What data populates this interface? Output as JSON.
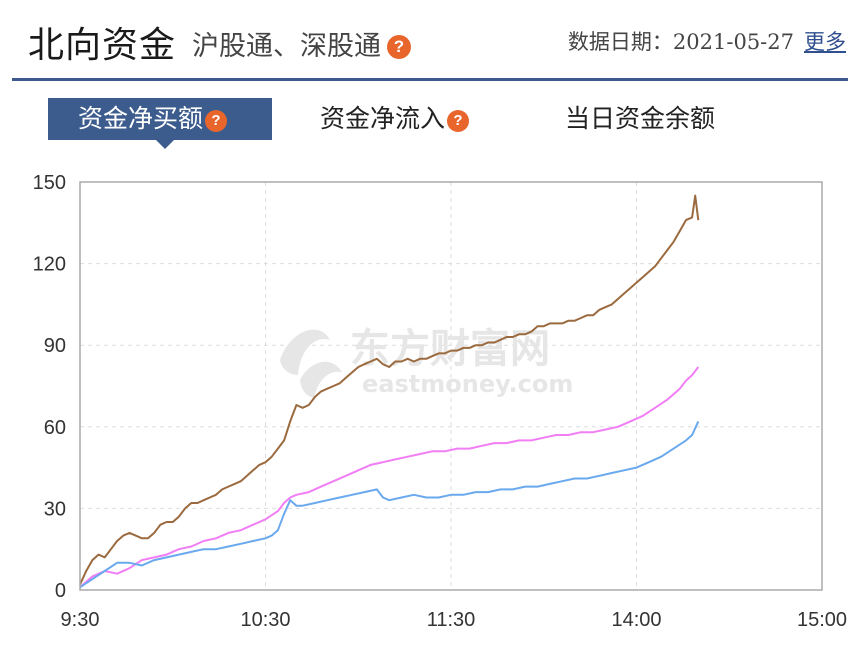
{
  "header": {
    "title": "北向资金",
    "subtitle": "沪股通、深股通",
    "help_icon": "question-mark-icon",
    "date_label": "数据日期：2021-05-27",
    "more_label": "更多"
  },
  "tabs": [
    {
      "label": "资金净买额",
      "active": true,
      "has_help": true
    },
    {
      "label": "资金净流入",
      "active": false,
      "has_help": true
    },
    {
      "label": "当日资金余额",
      "active": false,
      "has_help": false
    }
  ],
  "help_badge_text": "?",
  "watermark": {
    "main": "东方财富网",
    "sub": "eastmoney.com"
  },
  "colors": {
    "accent": "#3d5c8e",
    "badge": "#e8652b",
    "series_brown": "#9b6a3e",
    "series_pink": "#f27ef5",
    "series_blue": "#6aa9ee"
  },
  "chart_data": {
    "type": "line",
    "title": "",
    "xlabel": "",
    "ylabel": "",
    "ylim": [
      0,
      150
    ],
    "yticks": [
      0,
      30,
      60,
      90,
      120,
      150
    ],
    "xlim": [
      0,
      240
    ],
    "xticks": [
      {
        "pos": 0,
        "label": "9:30"
      },
      {
        "pos": 60,
        "label": "10:30"
      },
      {
        "pos": 120,
        "label": "11:30"
      },
      {
        "pos": 180,
        "label": "14:00"
      },
      {
        "pos": 240,
        "label": "15:00"
      }
    ],
    "grid": true,
    "series": [
      {
        "color": "#9b6a3e",
        "points": [
          [
            0,
            2
          ],
          [
            2,
            7
          ],
          [
            4,
            11
          ],
          [
            6,
            13
          ],
          [
            8,
            12
          ],
          [
            10,
            15
          ],
          [
            12,
            18
          ],
          [
            14,
            20
          ],
          [
            16,
            21
          ],
          [
            18,
            20
          ],
          [
            20,
            19
          ],
          [
            22,
            19
          ],
          [
            24,
            21
          ],
          [
            26,
            24
          ],
          [
            28,
            25
          ],
          [
            30,
            25
          ],
          [
            32,
            27
          ],
          [
            34,
            30
          ],
          [
            36,
            32
          ],
          [
            38,
            32
          ],
          [
            40,
            33
          ],
          [
            42,
            34
          ],
          [
            44,
            35
          ],
          [
            46,
            37
          ],
          [
            48,
            38
          ],
          [
            50,
            39
          ],
          [
            52,
            40
          ],
          [
            54,
            42
          ],
          [
            56,
            44
          ],
          [
            58,
            46
          ],
          [
            60,
            47
          ],
          [
            62,
            49
          ],
          [
            64,
            52
          ],
          [
            66,
            55
          ],
          [
            68,
            62
          ],
          [
            70,
            68
          ],
          [
            72,
            67
          ],
          [
            74,
            68
          ],
          [
            76,
            71
          ],
          [
            78,
            73
          ],
          [
            80,
            74
          ],
          [
            82,
            75
          ],
          [
            84,
            76
          ],
          [
            86,
            78
          ],
          [
            88,
            80
          ],
          [
            90,
            82
          ],
          [
            92,
            83
          ],
          [
            94,
            84
          ],
          [
            96,
            85
          ],
          [
            98,
            83
          ],
          [
            100,
            82
          ],
          [
            102,
            84
          ],
          [
            104,
            84
          ],
          [
            106,
            85
          ],
          [
            108,
            84
          ],
          [
            110,
            85
          ],
          [
            112,
            85
          ],
          [
            114,
            86
          ],
          [
            116,
            87
          ],
          [
            118,
            87
          ],
          [
            120,
            88
          ],
          [
            122,
            88
          ],
          [
            124,
            89
          ],
          [
            126,
            89
          ],
          [
            128,
            90
          ],
          [
            130,
            90
          ],
          [
            132,
            91
          ],
          [
            134,
            91
          ],
          [
            136,
            92
          ],
          [
            138,
            93
          ],
          [
            140,
            93
          ],
          [
            142,
            94
          ],
          [
            144,
            94
          ],
          [
            146,
            95
          ],
          [
            148,
            97
          ],
          [
            150,
            97
          ],
          [
            152,
            98
          ],
          [
            154,
            98
          ],
          [
            156,
            98
          ],
          [
            158,
            99
          ],
          [
            160,
            99
          ],
          [
            162,
            100
          ],
          [
            164,
            101
          ],
          [
            166,
            101
          ],
          [
            168,
            103
          ],
          [
            170,
            104
          ],
          [
            172,
            105
          ],
          [
            174,
            107
          ],
          [
            176,
            109
          ],
          [
            178,
            111
          ],
          [
            180,
            113
          ],
          [
            182,
            115
          ],
          [
            184,
            117
          ],
          [
            186,
            119
          ],
          [
            188,
            122
          ],
          [
            190,
            125
          ],
          [
            192,
            128
          ],
          [
            194,
            132
          ],
          [
            196,
            136
          ],
          [
            198,
            137
          ],
          [
            199,
            145
          ],
          [
            200,
            136
          ]
        ]
      },
      {
        "color": "#f27ef5",
        "points": [
          [
            0,
            1
          ],
          [
            4,
            5
          ],
          [
            8,
            7
          ],
          [
            12,
            6
          ],
          [
            16,
            8
          ],
          [
            20,
            11
          ],
          [
            24,
            12
          ],
          [
            28,
            13
          ],
          [
            32,
            15
          ],
          [
            36,
            16
          ],
          [
            40,
            18
          ],
          [
            44,
            19
          ],
          [
            48,
            21
          ],
          [
            52,
            22
          ],
          [
            56,
            24
          ],
          [
            60,
            26
          ],
          [
            64,
            29
          ],
          [
            66,
            32
          ],
          [
            68,
            34
          ],
          [
            70,
            35
          ],
          [
            74,
            36
          ],
          [
            78,
            38
          ],
          [
            82,
            40
          ],
          [
            86,
            42
          ],
          [
            90,
            44
          ],
          [
            94,
            46
          ],
          [
            98,
            47
          ],
          [
            102,
            48
          ],
          [
            106,
            49
          ],
          [
            110,
            50
          ],
          [
            114,
            51
          ],
          [
            118,
            51
          ],
          [
            122,
            52
          ],
          [
            126,
            52
          ],
          [
            130,
            53
          ],
          [
            134,
            54
          ],
          [
            138,
            54
          ],
          [
            142,
            55
          ],
          [
            146,
            55
          ],
          [
            150,
            56
          ],
          [
            154,
            57
          ],
          [
            158,
            57
          ],
          [
            162,
            58
          ],
          [
            166,
            58
          ],
          [
            170,
            59
          ],
          [
            174,
            60
          ],
          [
            178,
            62
          ],
          [
            182,
            64
          ],
          [
            186,
            67
          ],
          [
            190,
            70
          ],
          [
            194,
            74
          ],
          [
            196,
            77
          ],
          [
            198,
            79
          ],
          [
            200,
            82
          ]
        ]
      },
      {
        "color": "#6aa9ee",
        "points": [
          [
            0,
            1
          ],
          [
            4,
            4
          ],
          [
            8,
            7
          ],
          [
            12,
            10
          ],
          [
            16,
            10
          ],
          [
            20,
            9
          ],
          [
            24,
            11
          ],
          [
            28,
            12
          ],
          [
            32,
            13
          ],
          [
            36,
            14
          ],
          [
            40,
            15
          ],
          [
            44,
            15
          ],
          [
            48,
            16
          ],
          [
            52,
            17
          ],
          [
            56,
            18
          ],
          [
            60,
            19
          ],
          [
            62,
            20
          ],
          [
            64,
            22
          ],
          [
            66,
            28
          ],
          [
            68,
            33
          ],
          [
            70,
            31
          ],
          [
            72,
            31
          ],
          [
            76,
            32
          ],
          [
            80,
            33
          ],
          [
            84,
            34
          ],
          [
            88,
            35
          ],
          [
            92,
            36
          ],
          [
            96,
            37
          ],
          [
            98,
            34
          ],
          [
            100,
            33
          ],
          [
            104,
            34
          ],
          [
            108,
            35
          ],
          [
            112,
            34
          ],
          [
            116,
            34
          ],
          [
            120,
            35
          ],
          [
            124,
            35
          ],
          [
            128,
            36
          ],
          [
            132,
            36
          ],
          [
            136,
            37
          ],
          [
            140,
            37
          ],
          [
            144,
            38
          ],
          [
            148,
            38
          ],
          [
            152,
            39
          ],
          [
            156,
            40
          ],
          [
            160,
            41
          ],
          [
            164,
            41
          ],
          [
            168,
            42
          ],
          [
            172,
            43
          ],
          [
            176,
            44
          ],
          [
            180,
            45
          ],
          [
            184,
            47
          ],
          [
            188,
            49
          ],
          [
            192,
            52
          ],
          [
            196,
            55
          ],
          [
            198,
            57
          ],
          [
            200,
            62
          ]
        ]
      }
    ]
  }
}
